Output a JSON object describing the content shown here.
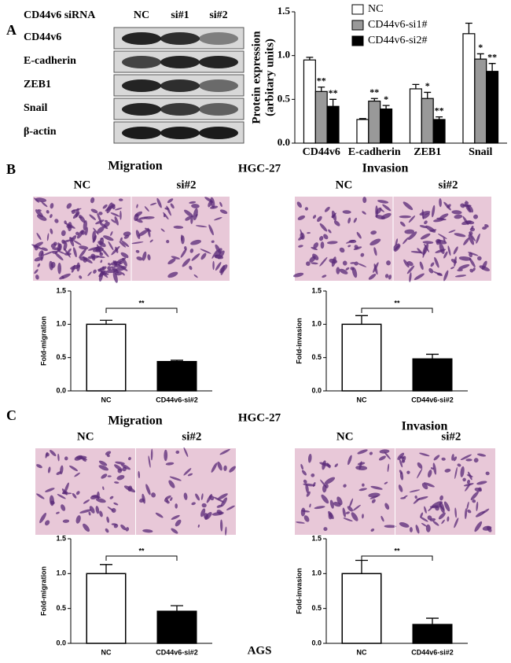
{
  "panels": [
    "A",
    "B",
    "C"
  ],
  "blot": {
    "header": "CD44v6 siRNA",
    "lanes": [
      "NC",
      "si#1",
      "si#2"
    ],
    "proteins": [
      "CD44v6",
      "E-cadherin",
      "ZEB1",
      "Snail",
      "β-actin"
    ]
  },
  "b_header": "HGC-27",
  "c_header": "HGC-27",
  "c_footer": "AGS",
  "images": [
    {
      "title": "Migration",
      "labels": [
        "NC",
        "si#2"
      ]
    },
    {
      "title": "Invasion",
      "labels": [
        "NC",
        "si#2"
      ]
    },
    {
      "title": "Migration",
      "labels": [
        "NC",
        "si#2"
      ]
    },
    {
      "title": "Invasion",
      "labels": [
        "NC",
        "si#2"
      ]
    }
  ],
  "chart_data": [
    {
      "type": "bar",
      "ylabel": [
        "Protein expression",
        "(arbitary units)"
      ],
      "categories": [
        "CD44v6",
        "E-cadherin",
        "ZEB1",
        "Snail"
      ],
      "series": [
        {
          "name": "NC",
          "color": "#ffffff",
          "values": [
            0.95,
            0.27,
            0.62,
            1.25
          ],
          "errors": [
            0.03,
            0.01,
            0.05,
            0.12
          ]
        },
        {
          "name": "CD44v6-si1#",
          "color": "#999999",
          "values": [
            0.59,
            0.48,
            0.51,
            0.96
          ],
          "errors": [
            0.05,
            0.03,
            0.07,
            0.06
          ],
          "annotations": [
            "**",
            "**",
            "*",
            "*"
          ]
        },
        {
          "name": "CD44v6-si2#",
          "color": "#000000",
          "values": [
            0.42,
            0.39,
            0.27,
            0.82
          ],
          "errors": [
            0.08,
            0.04,
            0.03,
            0.09
          ],
          "annotations": [
            "**",
            "*",
            "**",
            "**"
          ]
        }
      ],
      "ylim": [
        0,
        1.5
      ],
      "yticks": [
        {
          "value": 0,
          "label": "0.0"
        },
        0.5,
        {
          "value": 1,
          "label": "1.0"
        },
        1.5
      ],
      "legend": "top-right"
    },
    {
      "type": "bar",
      "ylabel": "Fold-migration",
      "categories": [
        "NC",
        "CD44v6-si#2"
      ],
      "values": [
        1.0,
        0.44
      ],
      "errors": [
        0.06,
        0.02
      ],
      "colors": [
        "#ffffff",
        "#000000"
      ],
      "significance": "**",
      "ylim": [
        0,
        1.5
      ],
      "yticks": [
        {
          "value": 0,
          "label": "0.0"
        },
        0.5,
        {
          "value": 1,
          "label": "1.0"
        },
        1.5
      ]
    },
    {
      "type": "bar",
      "ylabel": "Fold-invasion",
      "categories": [
        "NC",
        "CD44v6-si#2"
      ],
      "values": [
        1.0,
        0.48
      ],
      "errors": [
        0.13,
        0.07
      ],
      "colors": [
        "#ffffff",
        "#000000"
      ],
      "significance": "**",
      "ylim": [
        0,
        1.5
      ],
      "yticks": [
        {
          "value": 0,
          "label": "0.0"
        },
        0.5,
        {
          "value": 1,
          "label": "1.0"
        },
        1.5
      ]
    },
    {
      "type": "bar",
      "ylabel": "Fold-migration",
      "categories": [
        "NC",
        "CD44v6-si#2"
      ],
      "values": [
        1.0,
        0.46
      ],
      "errors": [
        0.13,
        0.08
      ],
      "colors": [
        "#ffffff",
        "#000000"
      ],
      "significance": "**",
      "ylim": [
        0,
        1.5
      ],
      "yticks": [
        {
          "value": 0,
          "label": "0.0"
        },
        0.5,
        {
          "value": 1,
          "label": "1.0"
        },
        1.5
      ]
    },
    {
      "type": "bar",
      "ylabel": "Fold-invasion",
      "categories": [
        "NC",
        "CD44v6-si#2"
      ],
      "values": [
        1.0,
        0.27
      ],
      "errors": [
        0.19,
        0.09
      ],
      "colors": [
        "#ffffff",
        "#000000"
      ],
      "significance": "**",
      "ylim": [
        0,
        1.5
      ],
      "yticks": [
        {
          "value": 0,
          "label": "0.0"
        },
        0.5,
        {
          "value": 1,
          "label": "1.0"
        },
        1.5
      ]
    }
  ]
}
